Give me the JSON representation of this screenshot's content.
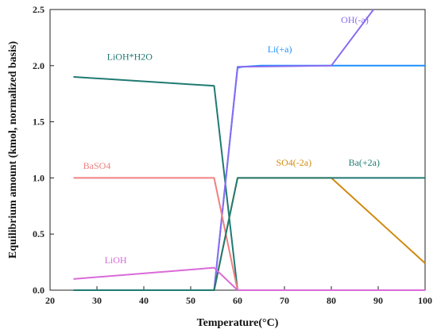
{
  "chart_data": {
    "type": "line",
    "title": "",
    "xlabel": "Temperature(°C)",
    "ylabel": "Equilibrium amount (kmol, normalized basis)",
    "xlim": [
      20,
      100
    ],
    "ylim": [
      0,
      2.5
    ],
    "xticks": [
      20,
      30,
      40,
      50,
      60,
      70,
      80,
      90,
      100
    ],
    "yticks": [
      0.0,
      0.5,
      1.0,
      1.5,
      2.0,
      2.5
    ],
    "ytick_labels": [
      "0.0",
      "0.5",
      "1.0",
      "1.5",
      "2.0",
      "2.5"
    ],
    "grid": false,
    "legend": "inline labels",
    "series": [
      {
        "name": "LiOH*H2O",
        "color": "#1f7a72",
        "points": [
          [
            25,
            1.9
          ],
          [
            55,
            1.82
          ],
          [
            60,
            0.0
          ],
          [
            100,
            0.0
          ]
        ],
        "label_at": [
          37,
          2.05
        ]
      },
      {
        "name": "Li(+a)",
        "color": "#1e90ff",
        "points": [
          [
            25,
            0.0
          ],
          [
            55,
            0.0
          ],
          [
            60,
            1.98
          ],
          [
            61,
            1.99
          ],
          [
            65,
            2.0
          ],
          [
            100,
            2.0
          ]
        ],
        "label_at": [
          69,
          2.12
        ]
      },
      {
        "name": "OH(-a)",
        "color": "#8a6cf0",
        "points": [
          [
            55,
            0.0
          ],
          [
            60,
            1.99
          ],
          [
            80,
            2.0
          ],
          [
            89,
            2.5
          ]
        ],
        "label_at": [
          85,
          2.38
        ]
      },
      {
        "name": "BaSO4",
        "color": "#f08080",
        "points": [
          [
            25,
            1.0
          ],
          [
            55,
            1.0
          ],
          [
            60,
            0.0
          ],
          [
            100,
            0.0
          ]
        ],
        "label_at": [
          30,
          1.08
        ]
      },
      {
        "name": "SO4(-2a)",
        "color": "#d18a10",
        "points": [
          [
            25,
            0.0
          ],
          [
            55,
            0.0
          ],
          [
            60,
            1.0
          ],
          [
            80,
            1.0
          ],
          [
            100,
            0.24
          ]
        ],
        "label_at": [
          72,
          1.11
        ]
      },
      {
        "name": "Ba(+2a)",
        "color": "#1f7a72",
        "points": [
          [
            25,
            0.0
          ],
          [
            55,
            0.0
          ],
          [
            60,
            1.0
          ],
          [
            100,
            1.0
          ]
        ],
        "label_at": [
          87,
          1.11
        ]
      },
      {
        "name": "LiOH",
        "color": "#d96ad9",
        "points": [
          [
            25,
            0.1
          ],
          [
            55,
            0.2
          ],
          [
            60,
            0.0
          ],
          [
            100,
            0.0
          ]
        ],
        "label_at": [
          34,
          0.24
        ]
      }
    ]
  }
}
